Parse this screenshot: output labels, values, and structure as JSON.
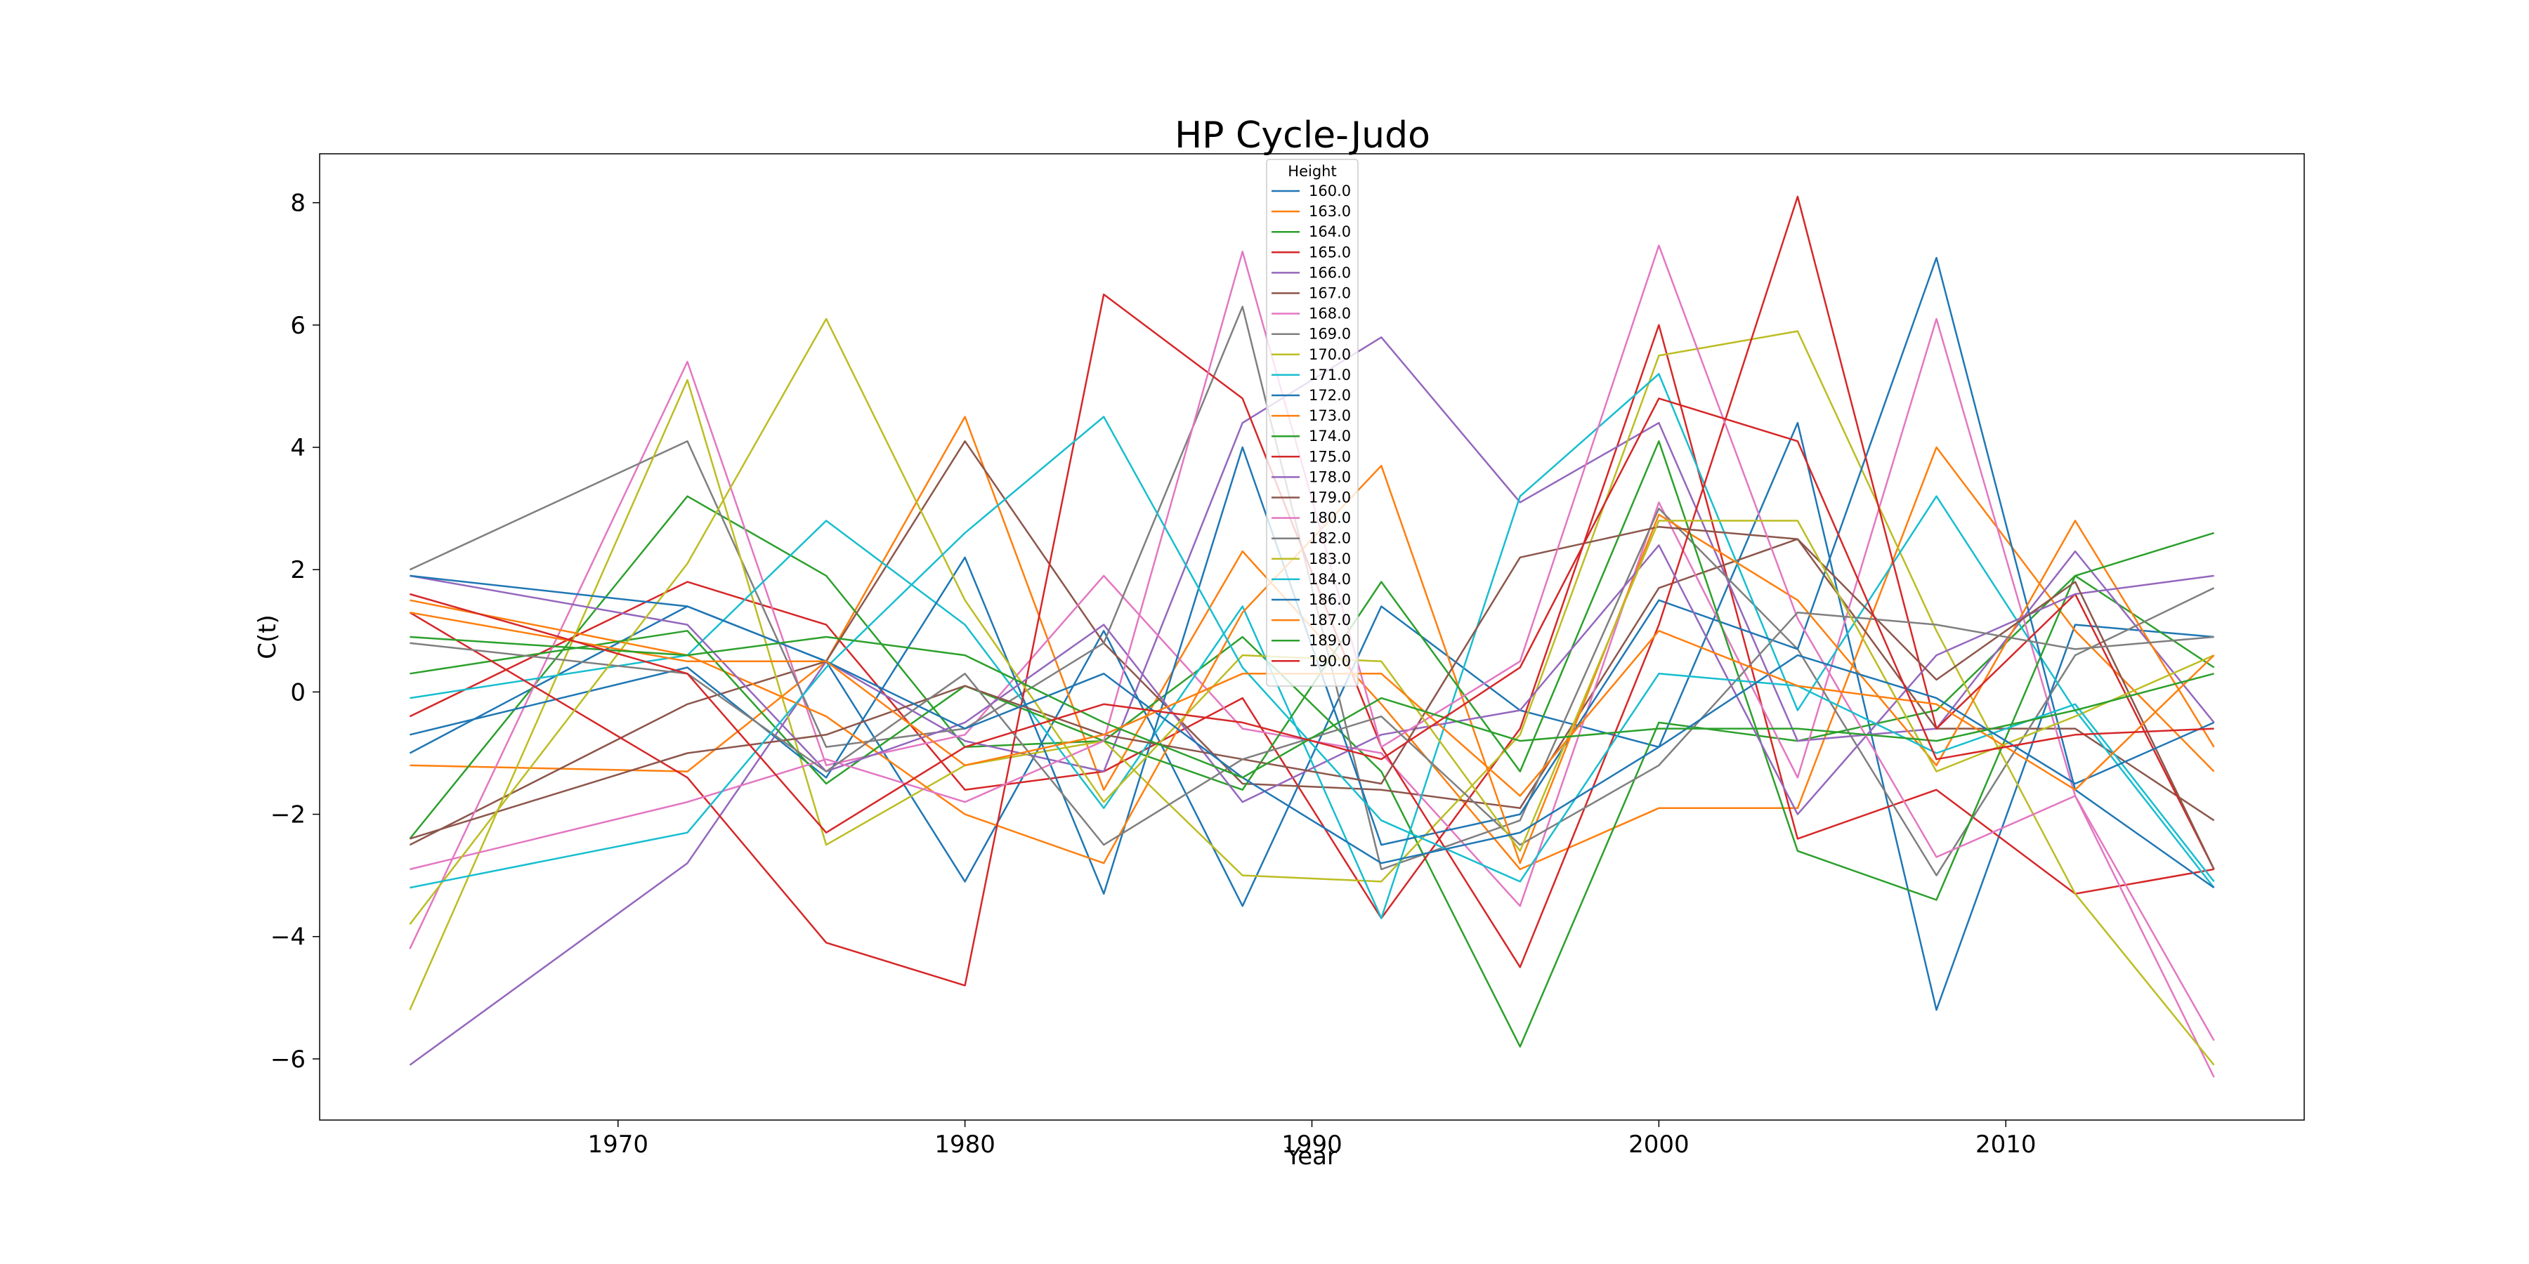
{
  "chart_data": {
    "type": "line",
    "title": "HP Cycle-Judo",
    "xlabel": "Year",
    "ylabel": "C(t)",
    "xlim": [
      1961.4,
      2018.6
    ],
    "ylim": [
      -7.0,
      8.8
    ],
    "xticks": [
      1970,
      1980,
      1990,
      2000,
      2010
    ],
    "yticks": [
      -6,
      -4,
      -2,
      0,
      2,
      4,
      6,
      8
    ],
    "grid": false,
    "legend": {
      "title": "Height",
      "position": "top-center"
    },
    "x": [
      1964,
      1972,
      1976,
      1980,
      1984,
      1988,
      1992,
      1996,
      2000,
      2004,
      2008,
      2012,
      2016
    ],
    "series": [
      {
        "name": "160.0",
        "color": "#1f77b4",
        "values": [
          -1.0,
          1.4,
          0.5,
          -3.1,
          1.0,
          -3.5,
          1.4,
          -0.3,
          -0.9,
          4.4,
          -5.2,
          1.1,
          0.9
        ]
      },
      {
        "name": "163.0",
        "color": "#ff7f0e",
        "values": [
          -1.2,
          -1.3,
          0.5,
          4.5,
          -1.6,
          2.3,
          -0.2,
          -2.9,
          -1.9,
          -1.9,
          4.0,
          1.0,
          -1.3
        ]
      },
      {
        "name": "164.0",
        "color": "#2ca02c",
        "values": [
          -2.4,
          3.2,
          1.9,
          -0.9,
          -0.8,
          0.9,
          -1.3,
          -5.8,
          -0.5,
          -0.8,
          -0.3,
          1.9,
          0.4
        ]
      },
      {
        "name": "165.0",
        "color": "#d62728",
        "values": [
          -0.4,
          1.8,
          1.1,
          -1.6,
          -1.3,
          -0.1,
          -3.7,
          -0.6,
          6.0,
          -2.4,
          -1.6,
          -3.3,
          -2.9
        ]
      },
      {
        "name": "166.0",
        "color": "#9467bd",
        "values": [
          -6.1,
          -2.8,
          0.5,
          -0.8,
          -1.3,
          4.4,
          5.8,
          3.1,
          4.4,
          -0.8,
          -0.6,
          2.3,
          -0.5
        ]
      },
      {
        "name": "167.0",
        "color": "#8c564b",
        "values": [
          -2.5,
          -0.2,
          0.5,
          4.1,
          0.8,
          -1.5,
          -1.6,
          -1.9,
          1.7,
          2.5,
          -0.6,
          -0.6,
          -2.1
        ]
      },
      {
        "name": "168.0",
        "color": "#e377c2",
        "values": [
          -4.2,
          5.4,
          -1.2,
          -0.7,
          1.9,
          -0.6,
          -1.0,
          -3.5,
          3.1,
          -1.4,
          6.1,
          -1.7,
          -6.3
        ]
      },
      {
        "name": "169.0",
        "color": "#7f7f7f",
        "values": [
          2.0,
          4.1,
          -0.9,
          -0.6,
          0.8,
          6.3,
          -2.9,
          -2.1,
          3.0,
          0.7,
          -3.0,
          0.6,
          1.7
        ]
      },
      {
        "name": "170.0",
        "color": "#bcbd22",
        "values": [
          -5.2,
          5.1,
          -2.5,
          -1.2,
          -0.8,
          -3.0,
          -3.1,
          -0.7,
          5.5,
          5.9,
          1.0,
          -3.3,
          -6.1
        ]
      },
      {
        "name": "171.0",
        "color": "#17becf",
        "values": [
          -0.1,
          0.6,
          2.8,
          1.1,
          -1.9,
          1.4,
          -3.7,
          3.2,
          5.2,
          -0.3,
          3.2,
          -0.3,
          -3.2
        ]
      },
      {
        "name": "172.0",
        "color": "#1f77b4",
        "values": [
          -0.7,
          0.4,
          -1.4,
          2.2,
          -3.3,
          4.0,
          -2.5,
          -2.0,
          1.5,
          0.7,
          7.1,
          -1.6,
          -3.2
        ]
      },
      {
        "name": "173.0",
        "color": "#ff7f0e",
        "values": [
          1.5,
          0.6,
          -0.4,
          -2.0,
          -2.8,
          1.3,
          3.7,
          -2.8,
          2.9,
          1.5,
          -1.2,
          2.8,
          -0.9
        ]
      },
      {
        "name": "174.0",
        "color": "#2ca02c",
        "values": [
          0.3,
          1.0,
          -1.5,
          0.1,
          -0.8,
          -1.6,
          1.8,
          -1.3,
          4.1,
          -2.6,
          -3.4,
          1.9,
          2.6
        ]
      },
      {
        "name": "175.0",
        "color": "#d62728",
        "values": [
          1.3,
          -1.4,
          -4.1,
          -4.8,
          6.5,
          4.8,
          -0.9,
          -4.5,
          1.1,
          8.1,
          -0.6,
          1.6,
          -2.9
        ]
      },
      {
        "name": "178.0",
        "color": "#9467bd",
        "values": [
          1.9,
          1.1,
          -1.3,
          -0.5,
          1.1,
          -1.8,
          -0.7,
          -0.3,
          2.4,
          -2.0,
          0.6,
          1.6,
          1.9
        ]
      },
      {
        "name": "179.0",
        "color": "#8c564b",
        "values": [
          -2.4,
          -1.0,
          -0.7,
          0.1,
          -0.7,
          -1.1,
          -1.5,
          2.2,
          2.7,
          2.5,
          0.2,
          1.8,
          -2.9
        ]
      },
      {
        "name": "180.0",
        "color": "#e377c2",
        "values": [
          -2.9,
          -1.8,
          -1.1,
          -1.8,
          -0.8,
          7.2,
          -0.9,
          0.5,
          7.3,
          1.2,
          -2.7,
          -1.7,
          -5.7
        ]
      },
      {
        "name": "182.0",
        "color": "#7f7f7f",
        "values": [
          0.8,
          0.3,
          -1.3,
          0.3,
          -2.5,
          -1.1,
          -0.4,
          -2.5,
          -1.2,
          1.3,
          1.1,
          0.7,
          0.9
        ]
      },
      {
        "name": "183.0",
        "color": "#bcbd22",
        "values": [
          -3.8,
          2.1,
          6.1,
          1.5,
          -1.8,
          0.6,
          0.5,
          -2.6,
          2.8,
          2.8,
          -1.3,
          -0.4,
          0.6
        ]
      },
      {
        "name": "184.0",
        "color": "#17becf",
        "values": [
          -3.2,
          -2.3,
          0.4,
          2.6,
          4.5,
          0.4,
          -2.1,
          -3.1,
          0.3,
          0.1,
          -1.0,
          -0.2,
          -3.1
        ]
      },
      {
        "name": "186.0",
        "color": "#1f77b4",
        "values": [
          1.9,
          1.4,
          0.5,
          -0.6,
          0.3,
          -1.4,
          -2.8,
          -2.3,
          -0.9,
          0.6,
          -0.1,
          -1.5,
          -0.5
        ]
      },
      {
        "name": "187.0",
        "color": "#ff7f0e",
        "values": [
          1.3,
          0.5,
          0.5,
          -1.2,
          -0.7,
          0.3,
          0.3,
          -1.7,
          1.0,
          0.1,
          -0.2,
          -1.6,
          0.6
        ]
      },
      {
        "name": "189.0",
        "color": "#2ca02c",
        "values": [
          0.9,
          0.6,
          0.9,
          0.6,
          -0.5,
          -1.4,
          -0.1,
          -0.8,
          -0.6,
          -0.6,
          -0.8,
          -0.3,
          0.3
        ]
      },
      {
        "name": "190.0",
        "color": "#d62728",
        "values": [
          1.6,
          0.3,
          -2.3,
          -0.9,
          -0.2,
          -0.5,
          -1.1,
          0.4,
          4.8,
          4.1,
          -1.1,
          -0.7,
          -0.6
        ]
      }
    ]
  }
}
